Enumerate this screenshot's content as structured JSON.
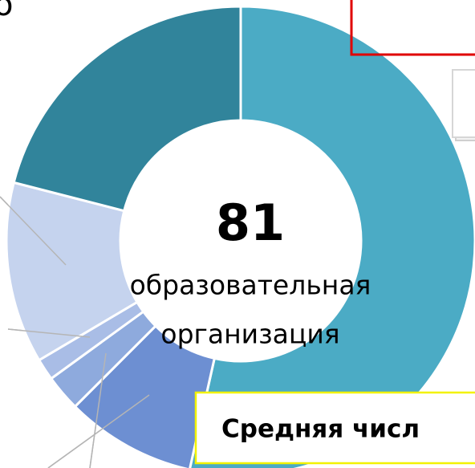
{
  "chart_data": {
    "type": "donut",
    "values": [
      53.5,
      9,
      2.5,
      1.5,
      12.5,
      21
    ],
    "colors": [
      "#4babc5",
      "#6d8fd2",
      "#8eaadd",
      "#a9bde6",
      "#c5d3ee",
      "#31849b"
    ],
    "categories": [
      null,
      null,
      null,
      null,
      null,
      null
    ],
    "center_value": "81",
    "center_label": [
      "образовательная",
      "организация"
    ],
    "annotations": [
      "Средняя числ",
      "о"
    ]
  }
}
